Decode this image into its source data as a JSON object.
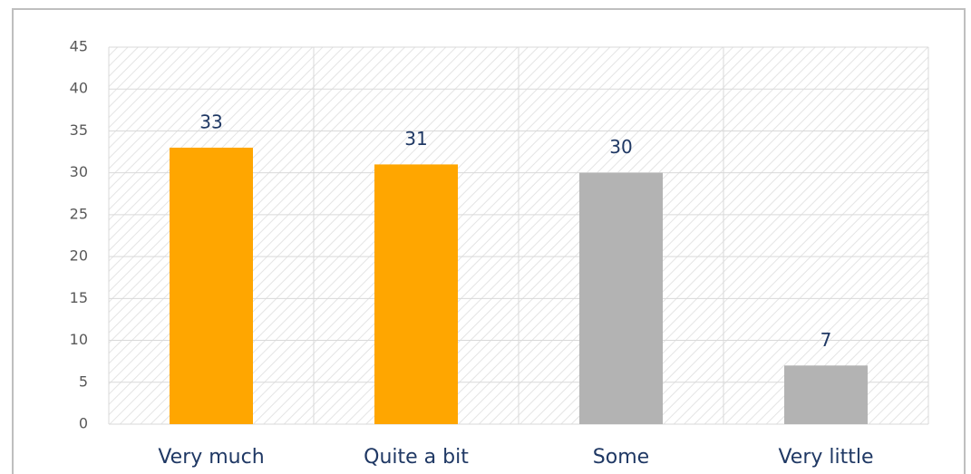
{
  "chart_data": {
    "type": "bar",
    "categories": [
      "Very much",
      "Quite a bit",
      "Some",
      "Very little"
    ],
    "values": [
      33,
      31,
      30,
      7
    ],
    "colors": [
      "#ffa600",
      "#ffa600",
      "#b3b3b3",
      "#b3b3b3"
    ],
    "ylim": [
      0,
      45
    ],
    "yticks": [
      0,
      5,
      10,
      15,
      20,
      25,
      30,
      35,
      40,
      45
    ],
    "grid": true
  }
}
